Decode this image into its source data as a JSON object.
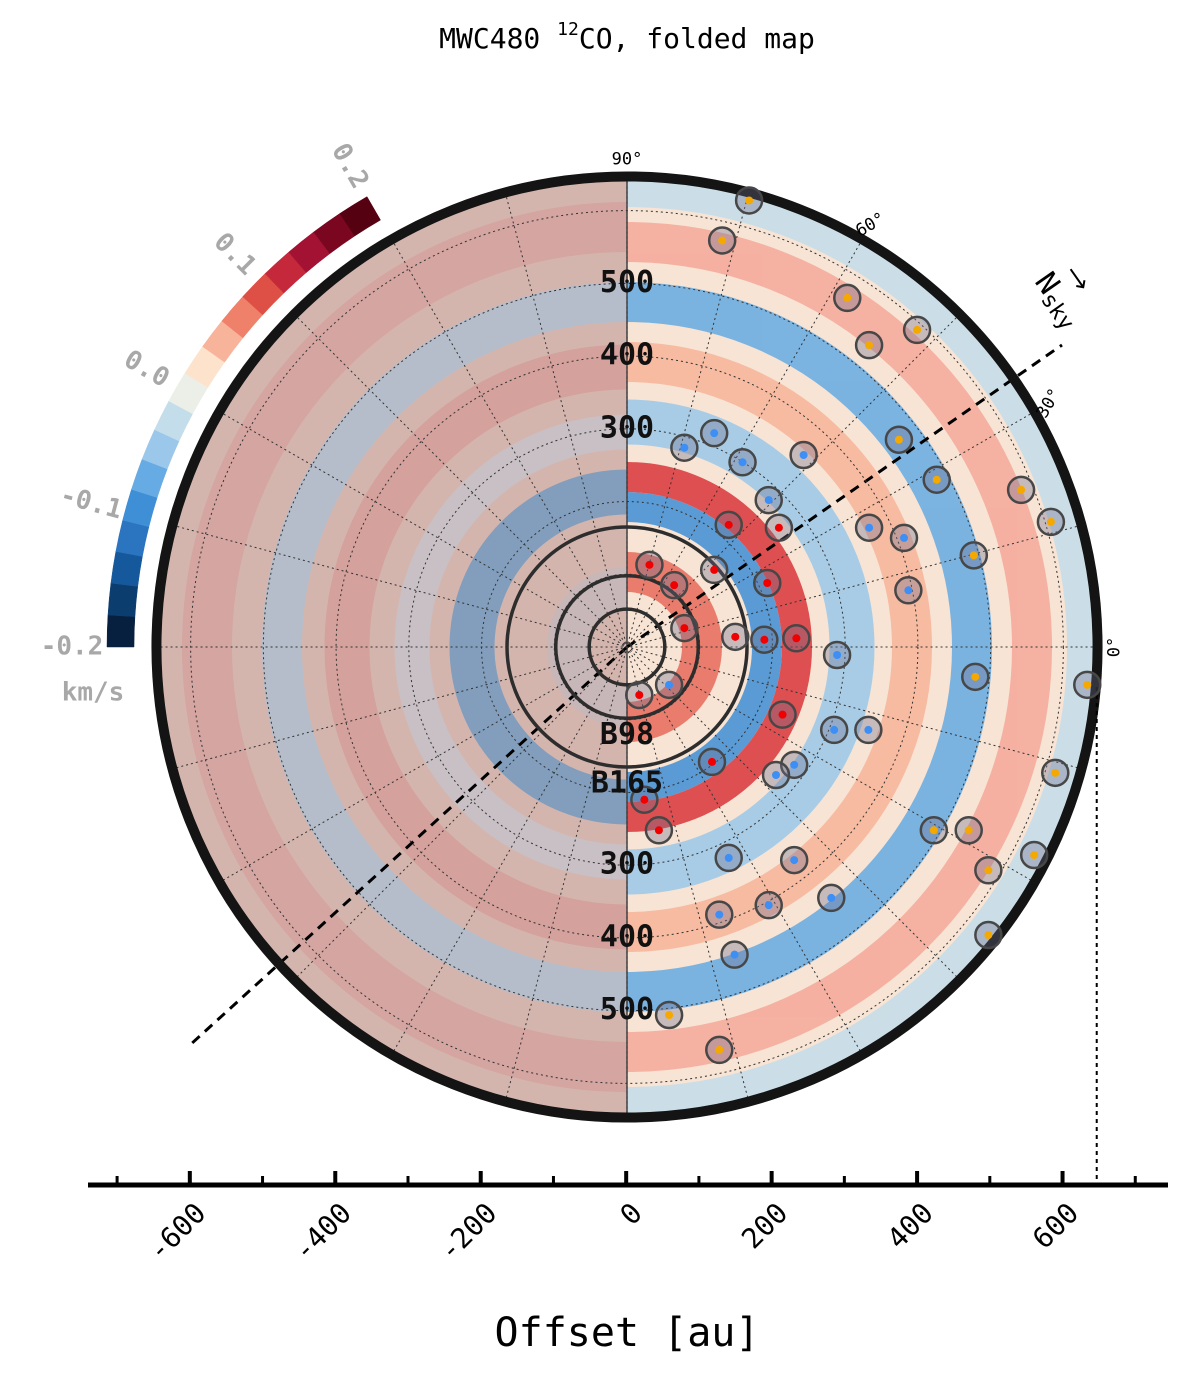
{
  "chart_data": {
    "type": "polar",
    "title": {
      "before": "MWC480 ",
      "superscript": "12",
      "after": "CO, folded map"
    },
    "xlabel": "Offset [au]",
    "xlim": [
      -740,
      745
    ],
    "xticks": [
      -600,
      -400,
      -200,
      0,
      200,
      400,
      600
    ],
    "xminorticks": [
      -700,
      -500,
      -300,
      -100,
      100,
      300,
      500,
      700
    ],
    "rmax": 647,
    "rticks": [
      300,
      400,
      500
    ],
    "rgrid": [
      100,
      200,
      300,
      400,
      500,
      600
    ],
    "thetagrid": [
      0,
      15,
      30,
      45,
      60,
      75,
      90,
      105,
      120,
      135,
      150,
      165
    ],
    "thetaticks": [
      {
        "value": 0,
        "label": "0°"
      },
      {
        "value": 30,
        "label": "30°"
      },
      {
        "value": 60,
        "label": "60°"
      },
      {
        "value": 90,
        "label": "90°"
      }
    ],
    "north_label": "N",
    "north_subscript": "sky",
    "rings": [
      {
        "radius": 52
      },
      {
        "radius": 98,
        "label": "B98"
      },
      {
        "radius": 165,
        "label": "B165"
      }
    ],
    "colorbar": {
      "clim": [
        -0.2,
        0.2
      ],
      "label": "km/s",
      "ticks": [
        -0.2,
        -0.1,
        {
          "value": 0,
          "label": "0.0"
        },
        0.1,
        0.2
      ],
      "colormap": [
        "#08203f",
        "#0b3d6e",
        "#15589c",
        "#2a74c0",
        "#3f8fd6",
        "#66abe3",
        "#9bc8ea",
        "#c4ddea",
        "#ecefe8",
        "#fde3cc",
        "#f8b49a",
        "#ef8069",
        "#de4f45",
        "#c5283a",
        "#a31232",
        "#7b0620",
        "#560111"
      ]
    },
    "markers": [
      {
        "color": "#f5a800",
        "x": [
          169,
          132,
          304,
          334,
          400,
          375,
          427,
          543,
          584,
          478,
          480,
          634,
          590,
          423,
          471,
          498,
          498,
          59,
          128,
          561
        ],
        "y": [
          614,
          559,
          480,
          415,
          436,
          285,
          230,
          216,
          172,
          126,
          -41,
          -52,
          -173,
          -252,
          -252,
          -307,
          -396,
          -506,
          -554,
          -286
        ]
      },
      {
        "color": "#3d8ff5",
        "x": [
          80,
          121,
          160,
          196,
          244,
          334,
          382,
          388,
          290,
          286,
          333,
          231,
          206,
          141,
          231,
          196,
          282,
          128,
          149,
          59
        ],
        "y": [
          274,
          294,
          254,
          202,
          264,
          164,
          150,
          78,
          -11,
          -114,
          -114,
          -162,
          -176,
          -290,
          -293,
          -355,
          -345,
          -368,
          -423,
          -52
        ]
      },
      {
        "color": "#f00000",
        "x": [
          32,
          141,
          194,
          150,
          190,
          234,
          215,
          118,
          25,
          80,
          66,
          18,
          210,
          45,
          121
        ],
        "y": [
          113,
          168,
          88,
          14,
          10,
          12,
          -93,
          -158,
          -210,
          26,
          85,
          -66,
          164,
          -252,
          106
        ]
      }
    ]
  }
}
